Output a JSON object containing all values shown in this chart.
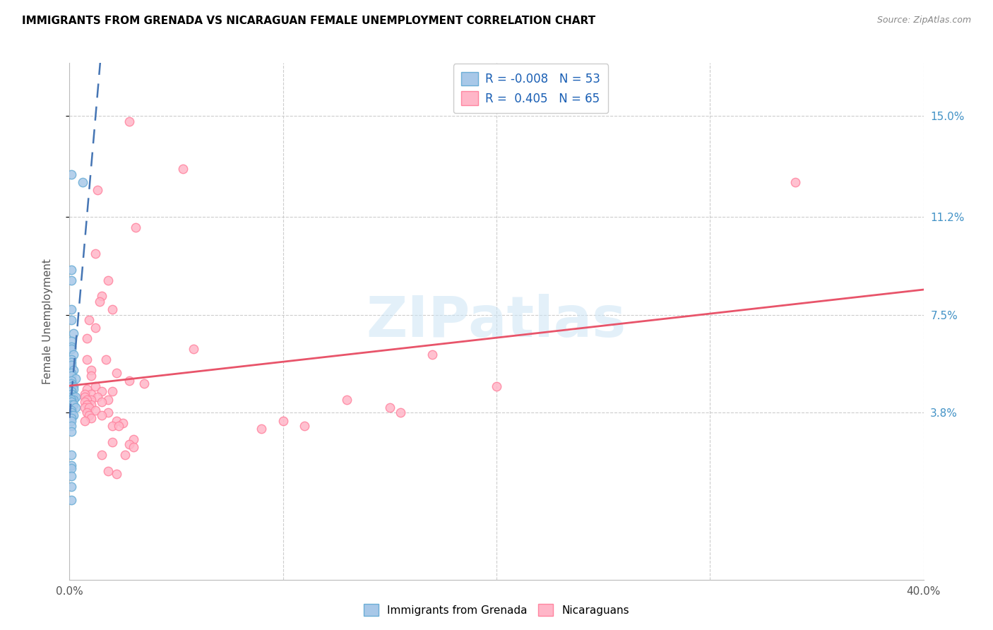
{
  "title": "IMMIGRANTS FROM GRENADA VS NICARAGUAN FEMALE UNEMPLOYMENT CORRELATION CHART",
  "source": "Source: ZipAtlas.com",
  "ylabel": "Female Unemployment",
  "ytick_labels": [
    "15.0%",
    "11.2%",
    "7.5%",
    "3.8%"
  ],
  "ytick_values": [
    0.15,
    0.112,
    0.075,
    0.038
  ],
  "xlim": [
    0.0,
    0.4
  ],
  "ylim": [
    -0.025,
    0.17
  ],
  "legend": {
    "R1": "-0.008",
    "N1": "53",
    "label1": "Immigrants from Grenada",
    "R2": "0.405",
    "N2": "65",
    "label2": "Nicaraguans"
  },
  "color_blue": "#a8c8e8",
  "color_blue_edge": "#6baed6",
  "color_pink": "#ffb6c8",
  "color_pink_edge": "#ff85a0",
  "color_blue_line": "#4575b4",
  "color_pink_line": "#e8546a",
  "watermark": "ZIPatlas",
  "grenada_points": [
    [
      0.001,
      0.128
    ],
    [
      0.006,
      0.125
    ],
    [
      0.001,
      0.092
    ],
    [
      0.001,
      0.088
    ],
    [
      0.001,
      0.077
    ],
    [
      0.001,
      0.073
    ],
    [
      0.002,
      0.068
    ],
    [
      0.001,
      0.065
    ],
    [
      0.001,
      0.063
    ],
    [
      0.001,
      0.062
    ],
    [
      0.002,
      0.06
    ],
    [
      0.001,
      0.058
    ],
    [
      0.001,
      0.057
    ],
    [
      0.001,
      0.056
    ],
    [
      0.002,
      0.054
    ],
    [
      0.001,
      0.053
    ],
    [
      0.001,
      0.052
    ],
    [
      0.003,
      0.051
    ],
    [
      0.001,
      0.05
    ],
    [
      0.001,
      0.049
    ],
    [
      0.002,
      0.048
    ],
    [
      0.001,
      0.048
    ],
    [
      0.001,
      0.047
    ],
    [
      0.002,
      0.047
    ],
    [
      0.001,
      0.046
    ],
    [
      0.001,
      0.046
    ],
    [
      0.001,
      0.045
    ],
    [
      0.001,
      0.045
    ],
    [
      0.001,
      0.044
    ],
    [
      0.002,
      0.044
    ],
    [
      0.003,
      0.044
    ],
    [
      0.001,
      0.043
    ],
    [
      0.002,
      0.043
    ],
    [
      0.001,
      0.043
    ],
    [
      0.001,
      0.042
    ],
    [
      0.001,
      0.042
    ],
    [
      0.001,
      0.041
    ],
    [
      0.002,
      0.041
    ],
    [
      0.003,
      0.04
    ],
    [
      0.001,
      0.039
    ],
    [
      0.001,
      0.038
    ],
    [
      0.001,
      0.037
    ],
    [
      0.002,
      0.037
    ],
    [
      0.001,
      0.036
    ],
    [
      0.001,
      0.035
    ],
    [
      0.001,
      0.033
    ],
    [
      0.001,
      0.031
    ],
    [
      0.001,
      0.022
    ],
    [
      0.001,
      0.018
    ],
    [
      0.001,
      0.017
    ],
    [
      0.001,
      0.014
    ],
    [
      0.001,
      0.01
    ],
    [
      0.001,
      0.005
    ]
  ],
  "nicaraguan_points": [
    [
      0.028,
      0.148
    ],
    [
      0.053,
      0.13
    ],
    [
      0.013,
      0.122
    ],
    [
      0.031,
      0.108
    ],
    [
      0.012,
      0.098
    ],
    [
      0.018,
      0.088
    ],
    [
      0.015,
      0.082
    ],
    [
      0.014,
      0.08
    ],
    [
      0.02,
      0.077
    ],
    [
      0.009,
      0.073
    ],
    [
      0.012,
      0.07
    ],
    [
      0.008,
      0.066
    ],
    [
      0.058,
      0.062
    ],
    [
      0.008,
      0.058
    ],
    [
      0.017,
      0.058
    ],
    [
      0.01,
      0.054
    ],
    [
      0.022,
      0.053
    ],
    [
      0.01,
      0.052
    ],
    [
      0.028,
      0.05
    ],
    [
      0.035,
      0.049
    ],
    [
      0.012,
      0.048
    ],
    [
      0.008,
      0.047
    ],
    [
      0.015,
      0.046
    ],
    [
      0.02,
      0.046
    ],
    [
      0.01,
      0.045
    ],
    [
      0.007,
      0.045
    ],
    [
      0.007,
      0.044
    ],
    [
      0.013,
      0.044
    ],
    [
      0.01,
      0.043
    ],
    [
      0.018,
      0.043
    ],
    [
      0.008,
      0.043
    ],
    [
      0.015,
      0.042
    ],
    [
      0.007,
      0.042
    ],
    [
      0.01,
      0.041
    ],
    [
      0.008,
      0.041
    ],
    [
      0.007,
      0.04
    ],
    [
      0.009,
      0.04
    ],
    [
      0.012,
      0.039
    ],
    [
      0.008,
      0.038
    ],
    [
      0.018,
      0.038
    ],
    [
      0.015,
      0.037
    ],
    [
      0.009,
      0.037
    ],
    [
      0.01,
      0.036
    ],
    [
      0.007,
      0.035
    ],
    [
      0.022,
      0.035
    ],
    [
      0.025,
      0.034
    ],
    [
      0.02,
      0.033
    ],
    [
      0.023,
      0.033
    ],
    [
      0.03,
      0.028
    ],
    [
      0.02,
      0.027
    ],
    [
      0.028,
      0.026
    ],
    [
      0.03,
      0.025
    ],
    [
      0.015,
      0.022
    ],
    [
      0.026,
      0.022
    ],
    [
      0.018,
      0.016
    ],
    [
      0.022,
      0.015
    ],
    [
      0.34,
      0.125
    ],
    [
      0.17,
      0.06
    ],
    [
      0.2,
      0.048
    ],
    [
      0.13,
      0.043
    ],
    [
      0.15,
      0.04
    ],
    [
      0.155,
      0.038
    ],
    [
      0.1,
      0.035
    ],
    [
      0.11,
      0.033
    ],
    [
      0.09,
      0.032
    ]
  ]
}
